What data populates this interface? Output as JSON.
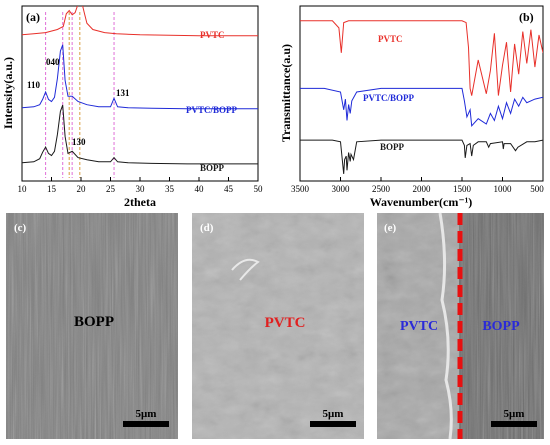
{
  "panels": {
    "a": {
      "label": "(a)"
    },
    "b": {
      "label": "(b)"
    },
    "c": {
      "label": "(c)",
      "text": "BOPP",
      "scalebar": "5μm"
    },
    "d": {
      "label": "(d)",
      "text": "PVTC",
      "scalebar": "5μm"
    },
    "e": {
      "label": "(e)",
      "left_text": "PVTC",
      "right_text": "BOPP",
      "scalebar": "5μm"
    }
  },
  "colors": {
    "pvtc": "#e8302a",
    "pvtc_bopp": "#1f2ad8",
    "bopp": "#1a1a1a",
    "guide_pink": "#e06fd8",
    "guide_orange": "#d9a040",
    "divider_red": "#e81010",
    "text_blue": "#2a2ad8",
    "text_red": "#e02020"
  },
  "chart_data": [
    {
      "type": "line",
      "xlabel": "2theta",
      "ylabel": "Intensity(a.u.)",
      "xlim": [
        10,
        50
      ],
      "xticks": [
        10,
        15,
        20,
        25,
        30,
        35,
        40,
        45,
        50
      ],
      "series": [
        {
          "name": "PVTC",
          "x": [
            10,
            12,
            14,
            16,
            17,
            17.5,
            18,
            18.5,
            19,
            19.5,
            20,
            20.5,
            21,
            22,
            24,
            26,
            30,
            35,
            40,
            45,
            50
          ],
          "y": [
            0.5,
            0.6,
            0.7,
            1.0,
            1.3,
            2.5,
            2.8,
            2.4,
            2.6,
            3.4,
            3.9,
            2.7,
            1.6,
            1.0,
            0.7,
            0.6,
            0.5,
            0.45,
            0.4,
            0.4,
            0.4
          ]
        },
        {
          "name": "PVTC/BOPP",
          "x": [
            10,
            12,
            13,
            13.5,
            14,
            14.5,
            15,
            15.5,
            16,
            16.5,
            16.9,
            17.3,
            17.8,
            18.5,
            19.5,
            21,
            23,
            25,
            25.6,
            26.2,
            28,
            32,
            38,
            44,
            50
          ],
          "y": [
            0.4,
            0.5,
            0.7,
            1.2,
            1.9,
            1.2,
            1.0,
            1.4,
            3.2,
            5.8,
            6.4,
            3.0,
            1.5,
            1.5,
            1.0,
            0.7,
            0.5,
            0.5,
            1.3,
            0.5,
            0.4,
            0.35,
            0.3,
            0.3,
            0.3
          ]
        },
        {
          "name": "BOPP",
          "x": [
            10,
            12,
            13,
            13.5,
            14,
            14.5,
            15,
            15.5,
            16,
            16.5,
            16.9,
            17.3,
            17.8,
            18.5,
            19.5,
            21,
            23,
            25,
            25.6,
            26.2,
            28,
            32,
            38,
            44,
            50
          ],
          "y": [
            0.3,
            0.4,
            0.7,
            1.3,
            1.8,
            1.2,
            1.0,
            1.4,
            3.0,
            5.2,
            5.8,
            2.8,
            1.2,
            1.4,
            0.8,
            0.6,
            0.4,
            0.4,
            0.8,
            0.4,
            0.3,
            0.25,
            0.2,
            0.2,
            0.2
          ]
        }
      ],
      "annotations": [
        "110",
        "040",
        "130",
        "131"
      ],
      "grid": false
    },
    {
      "type": "line",
      "xlabel": "Wavenumber(cm⁻¹)",
      "ylabel": "Transmittance(a.u)",
      "xlim": [
        3500,
        500
      ],
      "xticks": [
        3500,
        3000,
        2500,
        2000,
        1500,
        1000,
        500
      ],
      "series": [
        {
          "name": "PVTC",
          "x": [
            3500,
            3100,
            3020,
            2990,
            2960,
            2900,
            2500,
            2000,
            1500,
            1450,
            1420,
            1400,
            1380,
            1300,
            1200,
            1150,
            1100,
            1050,
            1000,
            950,
            900,
            850,
            800,
            750,
            700,
            650,
            600,
            550,
            500
          ],
          "y": [
            9.0,
            9.0,
            8.6,
            7.2,
            8.9,
            9.0,
            9.0,
            9.0,
            9.0,
            8.9,
            7.5,
            5.2,
            4.8,
            6.8,
            4.9,
            6.2,
            8.3,
            4.8,
            6.5,
            7.8,
            5.0,
            7.7,
            6.0,
            8.4,
            6.6,
            8.5,
            6.4,
            8.2,
            7.2
          ]
        },
        {
          "name": "PVTC/BOPP",
          "x": [
            3500,
            3200,
            3000,
            2960,
            2940,
            2920,
            2900,
            2880,
            2860,
            2800,
            2500,
            2000,
            1500,
            1470,
            1440,
            1400,
            1380,
            1300,
            1200,
            1150,
            1100,
            1050,
            1000,
            950,
            900,
            850,
            800,
            750,
            700,
            600,
            500
          ],
          "y": [
            5.2,
            5.2,
            5.0,
            4.0,
            4.6,
            3.4,
            4.3,
            3.8,
            4.5,
            5.0,
            5.2,
            5.2,
            5.2,
            4.5,
            3.6,
            4.0,
            3.1,
            3.5,
            3.2,
            3.8,
            3.4,
            4.2,
            3.5,
            4.4,
            3.8,
            4.6,
            4.2,
            4.7,
            4.4,
            4.6,
            4.7
          ]
        },
        {
          "name": "BOPP",
          "x": [
            3500,
            3100,
            3000,
            2960,
            2950,
            2930,
            2920,
            2900,
            2880,
            2870,
            2840,
            2800,
            2500,
            2000,
            1500,
            1470,
            1460,
            1440,
            1400,
            1380,
            1360,
            1300,
            1200,
            1170,
            1150,
            1000,
            990,
            980,
            900,
            840,
            810,
            700,
            600,
            500
          ],
          "y": [
            2.3,
            2.3,
            2.2,
            0.4,
            1.2,
            1.4,
            0.6,
            1.6,
            1.1,
            1.5,
            1.2,
            2.2,
            2.3,
            2.3,
            2.3,
            2.0,
            1.3,
            2.0,
            2.1,
            1.4,
            2.0,
            2.2,
            2.2,
            1.9,
            2.1,
            2.2,
            1.8,
            2.1,
            2.1,
            1.7,
            1.9,
            2.2,
            2.2,
            2.3
          ]
        }
      ],
      "grid": false
    }
  ]
}
